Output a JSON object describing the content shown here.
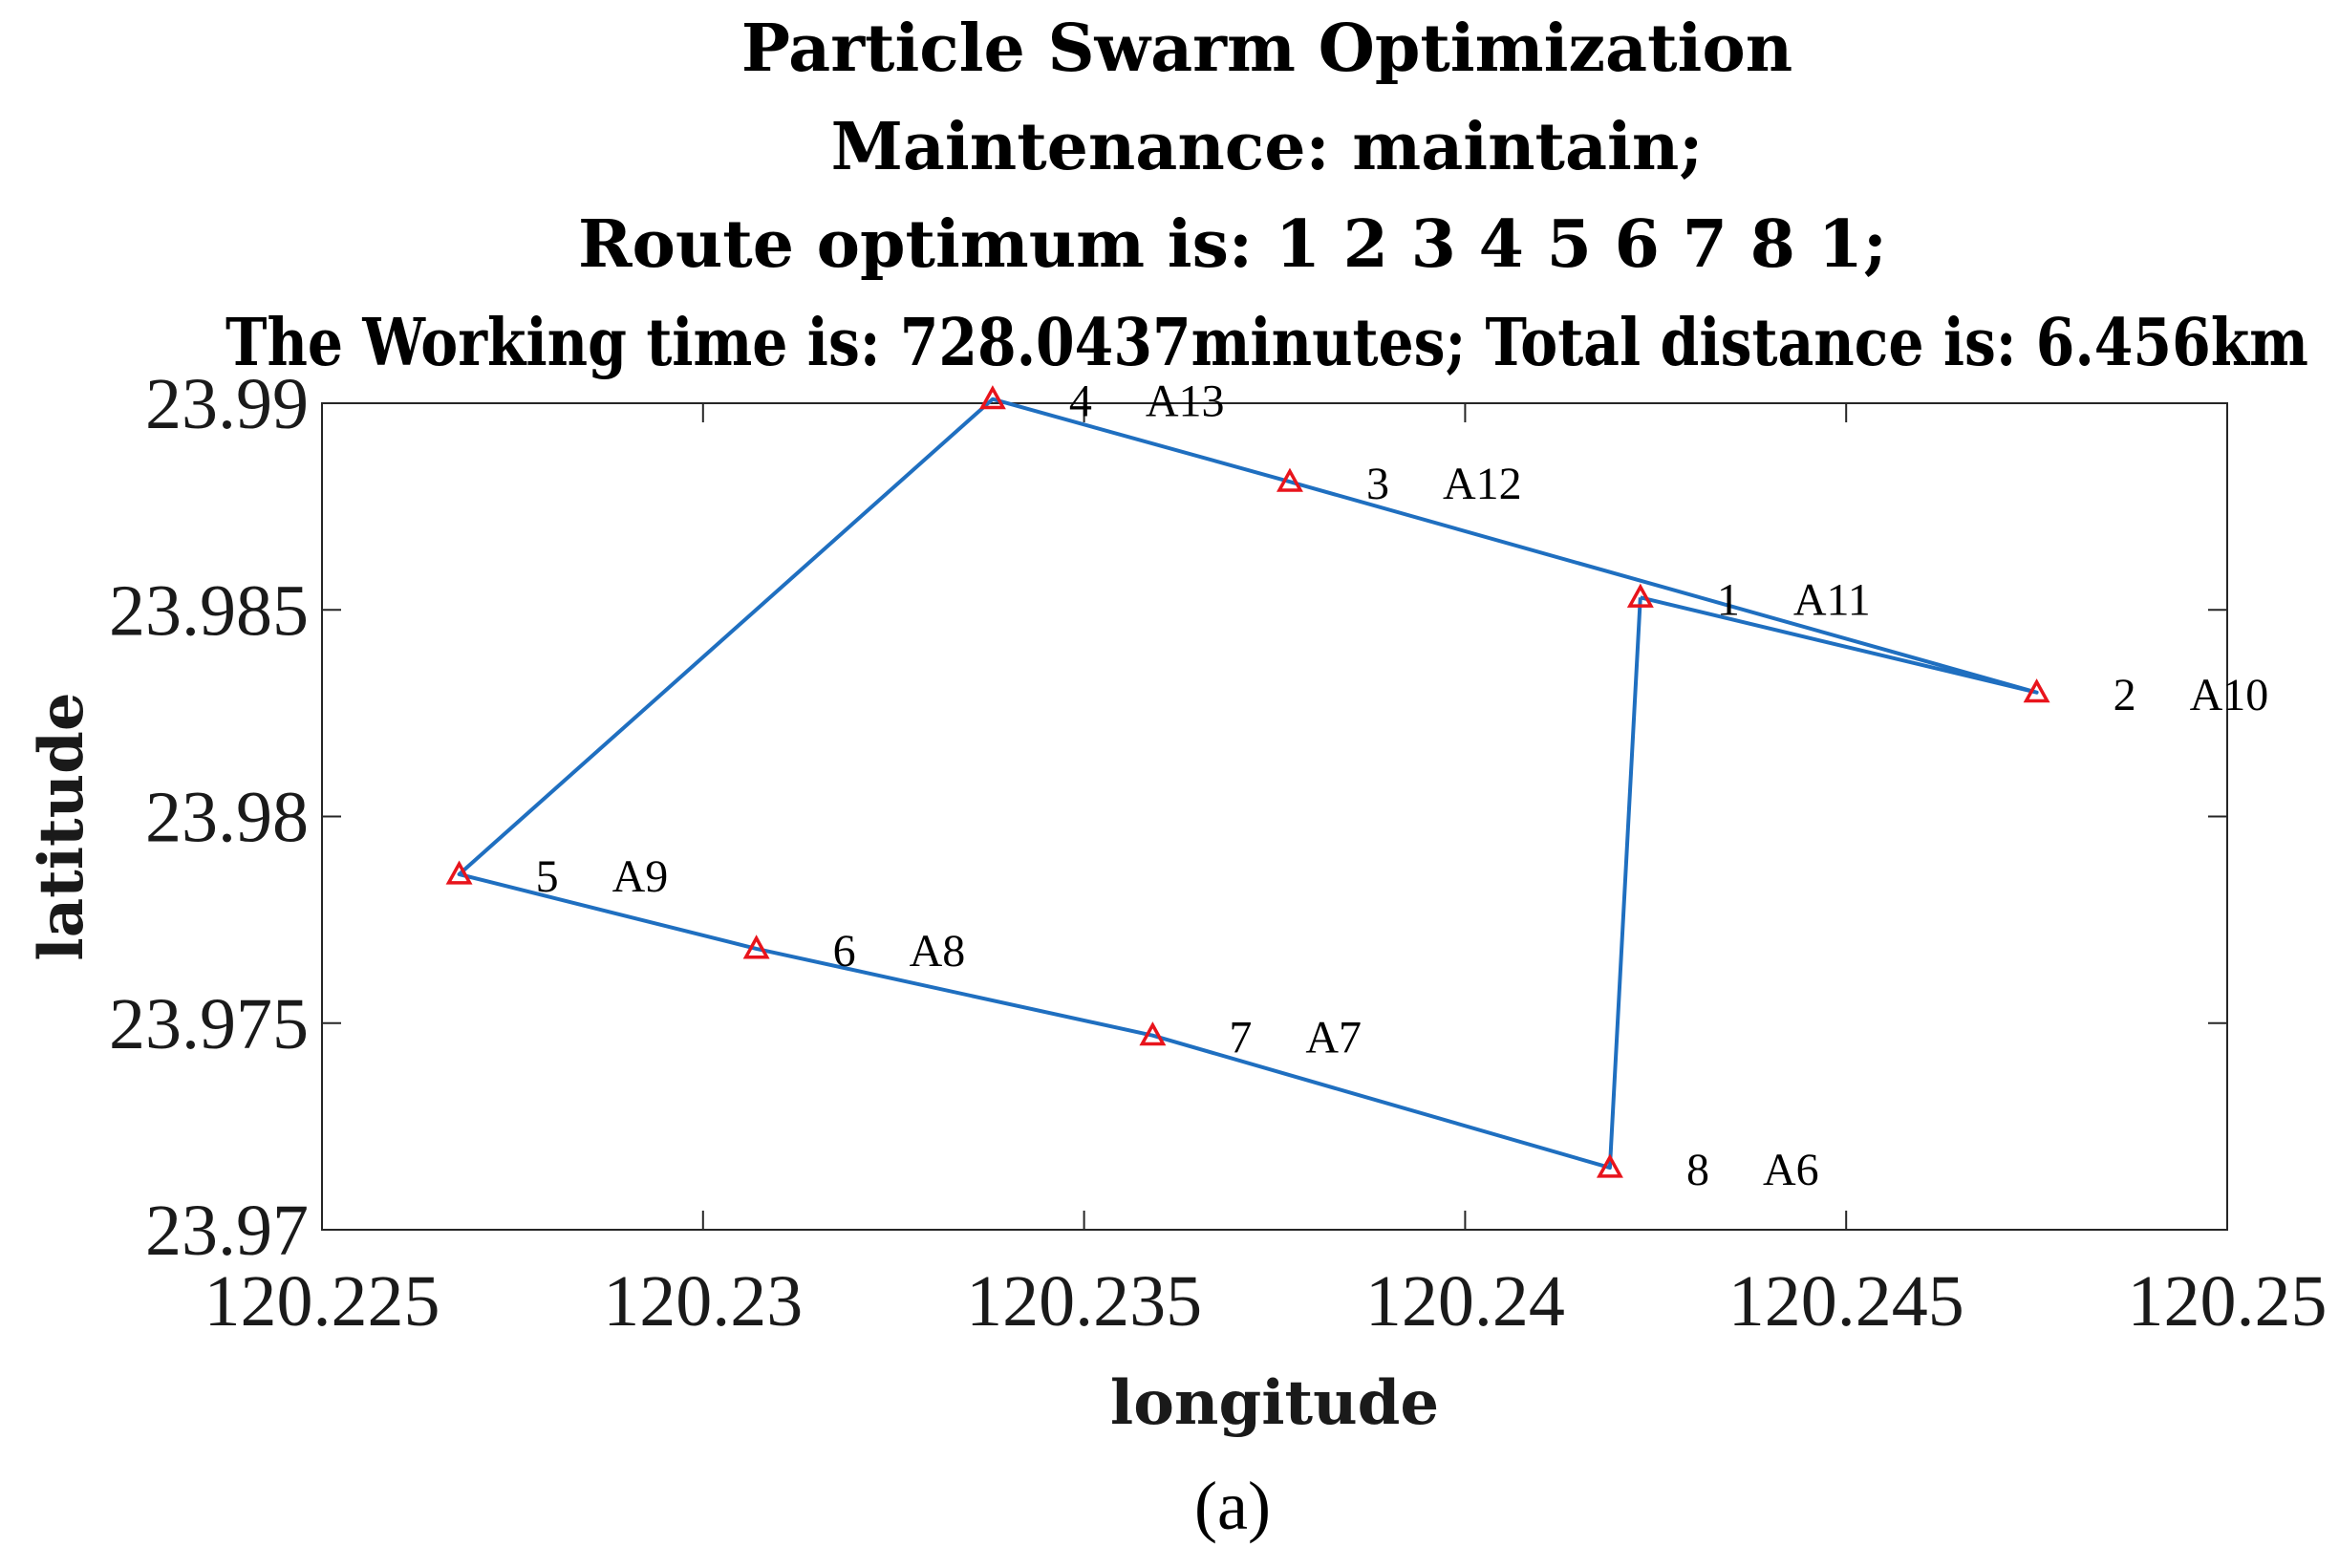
{
  "chart_data": {
    "type": "line",
    "title_lines": [
      "Particle Swarm Optimization",
      "Maintenance: maintain;",
      "Route optimum is: 1  2  3  4  5  6  7  8  1;",
      "The Working time is: 728.0437minutes;    Total distance is: 6.456km"
    ],
    "xlabel": "longitude",
    "ylabel": "latitude",
    "xlim": [
      120.225,
      120.25
    ],
    "ylim": [
      23.97,
      23.99
    ],
    "xticks": [
      120.225,
      120.23,
      120.235,
      120.24,
      120.245,
      120.25
    ],
    "xtick_labels": [
      "120.225",
      "120.23",
      "120.235",
      "120.24",
      "120.245",
      "120.25"
    ],
    "yticks": [
      23.97,
      23.975,
      23.98,
      23.985,
      23.99
    ],
    "ytick_labels": [
      "23.97",
      "23.975",
      "23.98",
      "23.985",
      "23.99"
    ],
    "points": [
      {
        "order": "1",
        "name": "A11",
        "lon": 120.2423,
        "lat": 23.9853
      },
      {
        "order": "2",
        "name": "A10",
        "lon": 120.2475,
        "lat": 23.983
      },
      {
        "order": "3",
        "name": "A12",
        "lon": 120.2377,
        "lat": 23.9881
      },
      {
        "order": "4",
        "name": "A13",
        "lon": 120.2338,
        "lat": 23.9901
      },
      {
        "order": "5",
        "name": "A9",
        "lon": 120.2268,
        "lat": 23.9786
      },
      {
        "order": "6",
        "name": "A8",
        "lon": 120.2307,
        "lat": 23.9768
      },
      {
        "order": "7",
        "name": "A7",
        "lon": 120.2359,
        "lat": 23.9747
      },
      {
        "order": "8",
        "name": "A6",
        "lon": 120.2419,
        "lat": 23.9715
      }
    ],
    "route": [
      "1",
      "2",
      "3",
      "4",
      "5",
      "6",
      "7",
      "8",
      "1"
    ],
    "line_color": "#1f6fc0",
    "marker_color": "#e8141c",
    "grid": false
  },
  "caption": "(a)"
}
